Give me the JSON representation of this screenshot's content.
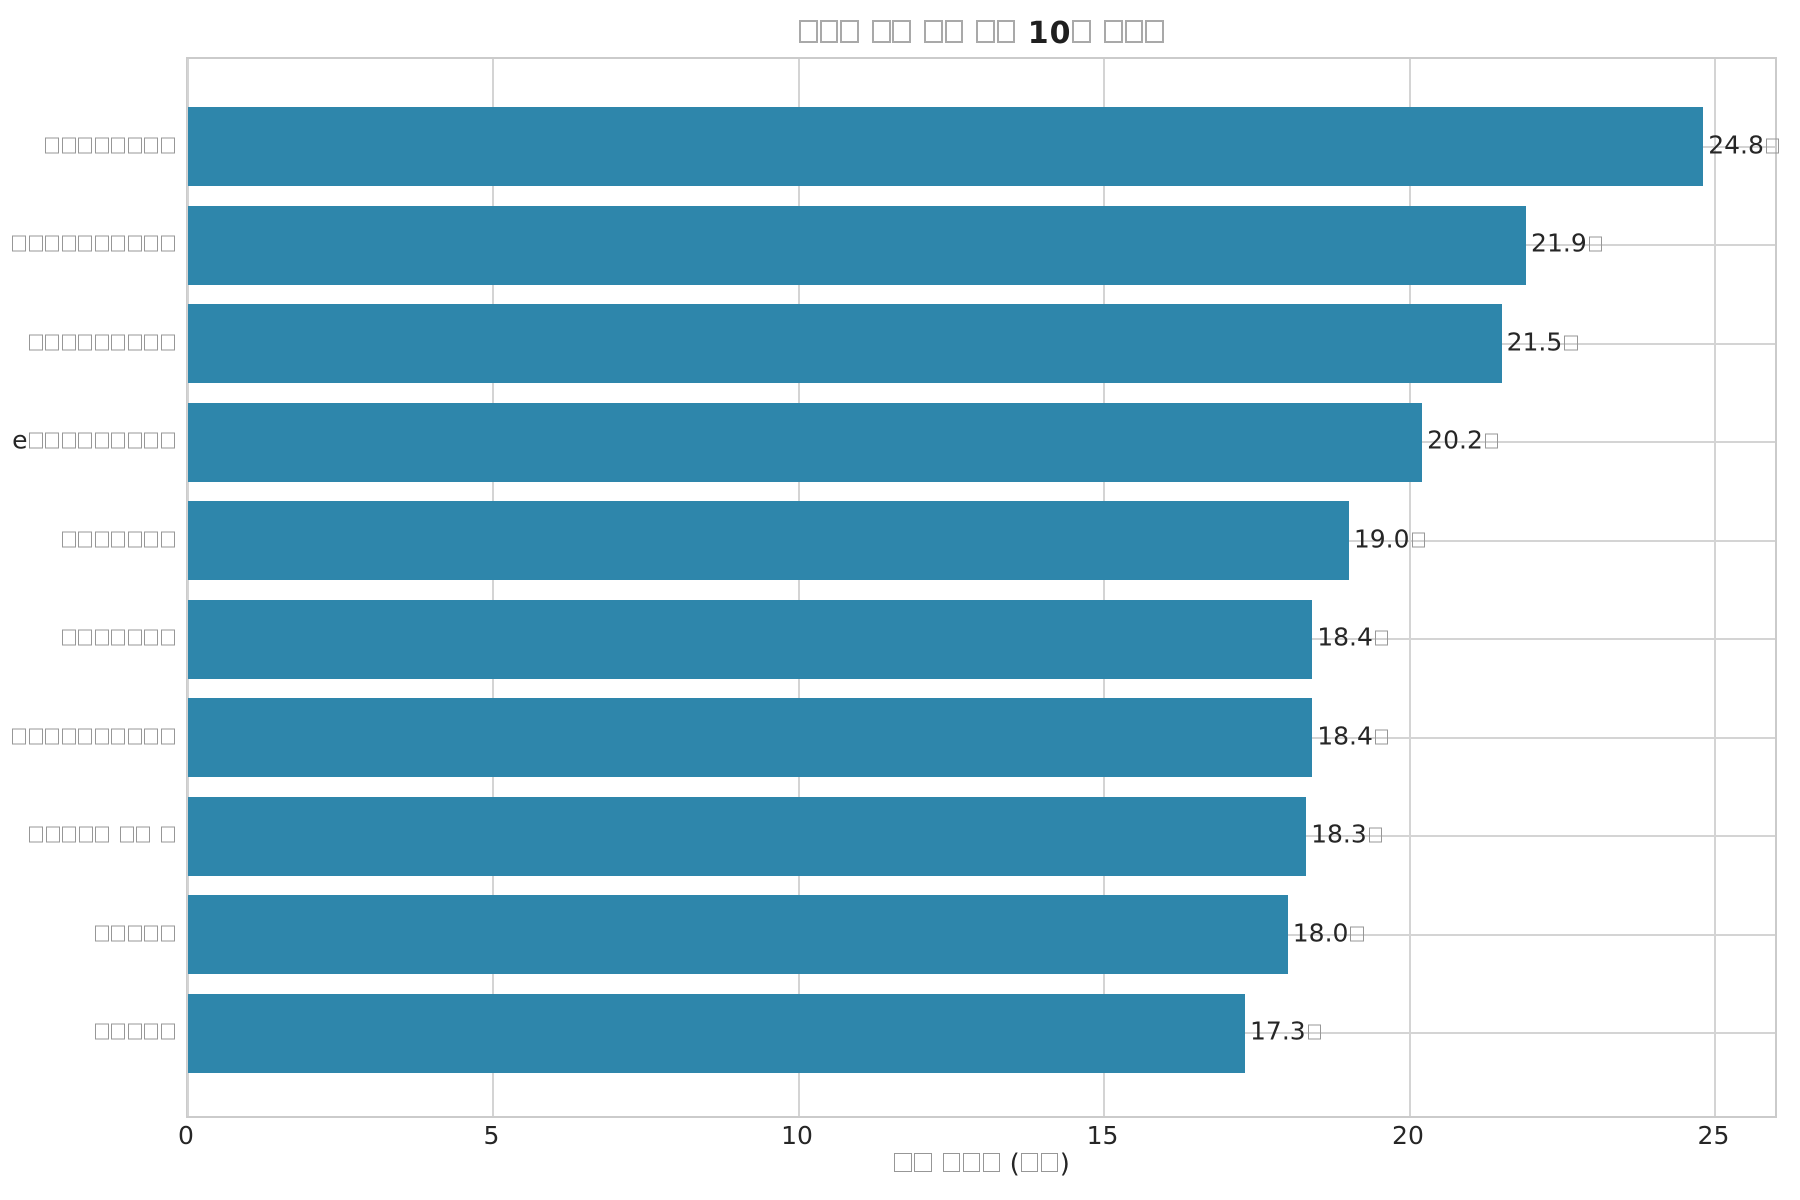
{
  "colors": {
    "bar": "#2E86AB",
    "grid": "#D4D4D4",
    "spine": "#CBCBCB",
    "text": "#262626",
    "tofu_outline": "#979797",
    "background": "#FFFFFF"
  },
  "chart_data": {
    "type": "bar",
    "orientation": "horizontal",
    "title": "□□□ □□ □□ □□ 10□ □□□",
    "xlabel": "□□ □□□ (□□)",
    "ylabel": "",
    "categories": [
      "□□□□□□□□",
      "□□□□□□□□□□",
      "□□□□□□□□□",
      "e□□□□□□□□□",
      "□□□□□□□",
      "□□□□□□□",
      "□□□□□□□□□□",
      "□□□□□ □□ □",
      "□□□□□",
      "□□□□□"
    ],
    "values": [
      24.8,
      21.9,
      21.5,
      20.2,
      19.0,
      18.4,
      18.4,
      18.3,
      18.0,
      17.3
    ],
    "value_labels": [
      "24.8□",
      "21.9□",
      "21.5□",
      "20.2□",
      "19.0□",
      "18.4□",
      "18.4□",
      "18.3□",
      "18.0□",
      "17.3□"
    ],
    "x_ticks": [
      0,
      5,
      10,
      15,
      20,
      25
    ],
    "xlim": [
      0,
      26.04
    ],
    "grid": true,
    "legend": false,
    "bar_color": "#2E86AB"
  }
}
